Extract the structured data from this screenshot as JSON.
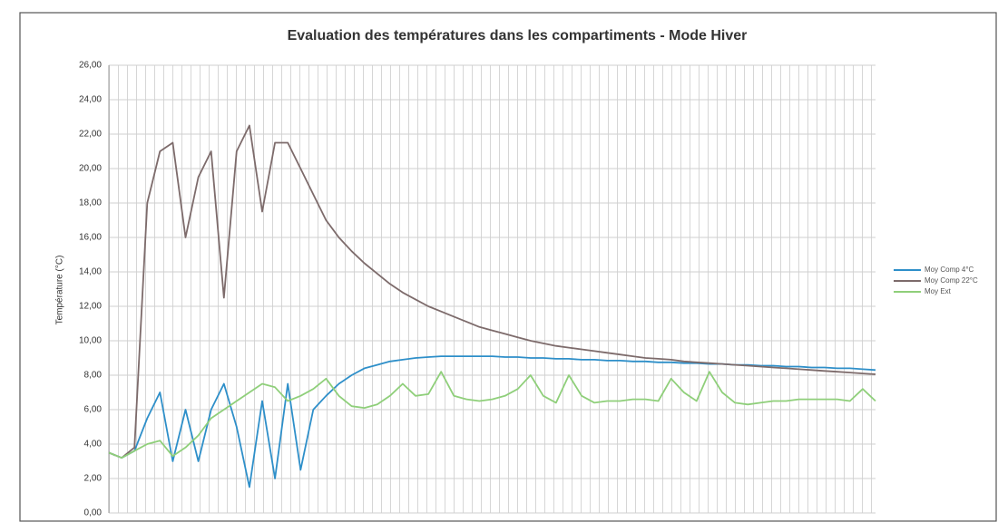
{
  "chart_data": {
    "type": "line",
    "title": "Evaluation des températures dans les compartiments - Mode Hiver",
    "y_label": "Température (°C)",
    "ylim": [
      0,
      26
    ],
    "yticks": [
      {
        "value": 0,
        "label": "0,00"
      },
      {
        "value": 2,
        "label": "2,00"
      },
      {
        "value": 4,
        "label": "4,00"
      },
      {
        "value": 6,
        "label": "6,00"
      },
      {
        "value": 8,
        "label": "8,00"
      },
      {
        "value": 10,
        "label": "10,00"
      },
      {
        "value": 12,
        "label": "12,00"
      },
      {
        "value": 14,
        "label": "14,00"
      },
      {
        "value": 16,
        "label": "16,00"
      },
      {
        "value": 18,
        "label": "18,00"
      },
      {
        "value": 20,
        "label": "20,00"
      },
      {
        "value": 22,
        "label": "22,00"
      },
      {
        "value": 24,
        "label": "24,00"
      },
      {
        "value": 26,
        "label": "26,00"
      }
    ],
    "grid": true,
    "legend": "right",
    "series": [
      {
        "name": "Moy Comp 4°C",
        "color": "#2e8fc9",
        "values": [
          3.5,
          3.2,
          3.6,
          5.5,
          7,
          3,
          6,
          3,
          6,
          7.5,
          5,
          1.5,
          6.5,
          2,
          7.5,
          2.5,
          6,
          6.8,
          7.5,
          8,
          8.4,
          8.6,
          8.8,
          8.9,
          9,
          9.05,
          9.1,
          9.1,
          9.1,
          9.1,
          9.1,
          9.05,
          9.05,
          9,
          9,
          8.95,
          8.95,
          8.9,
          8.9,
          8.85,
          8.85,
          8.8,
          8.8,
          8.75,
          8.75,
          8.7,
          8.7,
          8.65,
          8.65,
          8.6,
          8.6,
          8.55,
          8.55,
          8.5,
          8.5,
          8.45,
          8.45,
          8.4,
          8.4,
          8.35,
          8.3
        ]
      },
      {
        "name": "Moy Comp 22°C",
        "color": "#7d6b6b",
        "values": [
          3.5,
          3.2,
          3.8,
          18,
          21,
          21.5,
          16,
          19.5,
          21,
          12.5,
          21,
          22.5,
          17.5,
          21.5,
          21.5,
          20,
          18.5,
          17,
          16,
          15.2,
          14.5,
          13.9,
          13.3,
          12.8,
          12.4,
          12,
          11.7,
          11.4,
          11.1,
          10.8,
          10.6,
          10.4,
          10.2,
          10,
          9.85,
          9.7,
          9.6,
          9.5,
          9.4,
          9.3,
          9.2,
          9.1,
          9,
          8.95,
          8.9,
          8.8,
          8.75,
          8.7,
          8.65,
          8.6,
          8.55,
          8.5,
          8.45,
          8.4,
          8.35,
          8.3,
          8.25,
          8.2,
          8.15,
          8.1,
          8.05
        ]
      },
      {
        "name": "Moy Ext",
        "color": "#8fcf7a",
        "values": [
          3.5,
          3.2,
          3.6,
          4,
          4.2,
          3.3,
          3.8,
          4.5,
          5.5,
          6,
          6.5,
          7,
          7.5,
          7.3,
          6.5,
          6.8,
          7.2,
          7.8,
          6.8,
          6.2,
          6.1,
          6.3,
          6.8,
          7.5,
          6.8,
          6.9,
          8.2,
          6.8,
          6.6,
          6.5,
          6.6,
          6.8,
          7.2,
          8,
          6.8,
          6.4,
          8,
          6.8,
          6.4,
          6.5,
          6.5,
          6.6,
          6.6,
          6.5,
          7.8,
          7,
          6.5,
          8.2,
          7,
          6.4,
          6.3,
          6.4,
          6.5,
          6.5,
          6.6,
          6.6,
          6.6,
          6.6,
          6.5,
          7.2,
          6.5
        ]
      }
    ]
  }
}
